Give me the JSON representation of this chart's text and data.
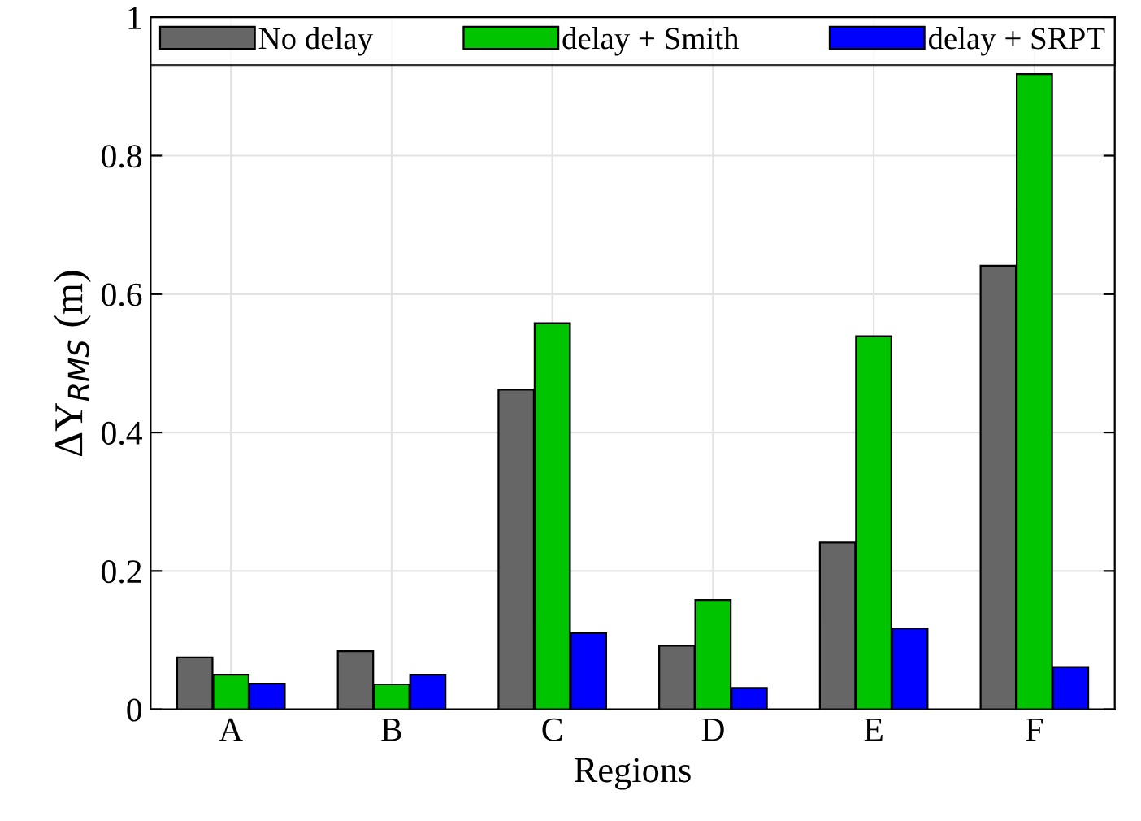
{
  "chart_data": {
    "type": "bar",
    "xlabel": "Regions",
    "ylabel": "ΔY$_{RMS}$ (m)",
    "categories": [
      "A",
      "B",
      "C",
      "D",
      "E",
      "F"
    ],
    "series": [
      {
        "name": "No delay",
        "color": "#666666",
        "values": [
          0.075,
          0.084,
          0.462,
          0.092,
          0.241,
          0.641
        ]
      },
      {
        "name": "delay + Smith",
        "color": "#00c400",
        "values": [
          0.05,
          0.036,
          0.558,
          0.158,
          0.539,
          0.918
        ]
      },
      {
        "name": "delay + SRPT",
        "color": "#0000ff",
        "values": [
          0.037,
          0.05,
          0.11,
          0.031,
          0.117,
          0.061
        ]
      }
    ],
    "ylim": [
      0,
      1
    ],
    "yticks": [
      0,
      0.2,
      0.4,
      0.6,
      0.8,
      1
    ],
    "grid": true,
    "legend": "top"
  }
}
